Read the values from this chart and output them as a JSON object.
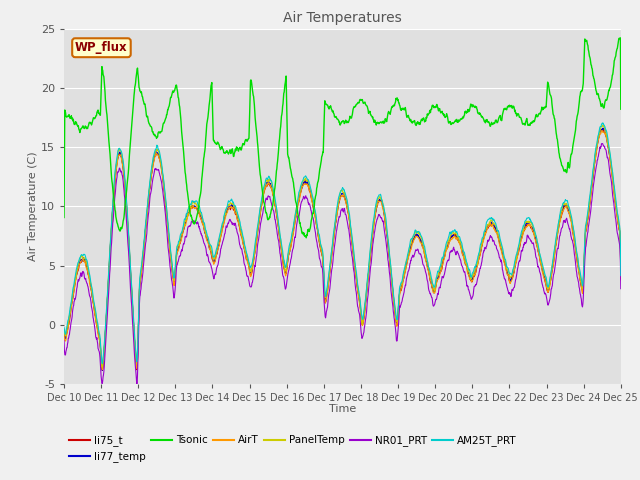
{
  "title": "Air Temperatures",
  "xlabel": "Time",
  "ylabel": "Air Temperature (C)",
  "ylim": [
    -5,
    25
  ],
  "xlim": [
    0,
    15
  ],
  "x_tick_labels": [
    "Dec 10",
    "Dec 11",
    "Dec 12",
    "Dec 13",
    "Dec 14",
    "Dec 15",
    "Dec 16",
    "Dec 17",
    "Dec 18",
    "Dec 19",
    "Dec 20",
    "Dec 21",
    "Dec 22",
    "Dec 23",
    "Dec 24",
    "Dec 25"
  ],
  "series_colors": {
    "li75_t": "#cc0000",
    "li77_temp": "#0000cc",
    "Tsonic": "#00dd00",
    "AirT": "#ff9900",
    "PanelTemp": "#cccc00",
    "NR01_PRT": "#9900cc",
    "AM25T_PRT": "#00cccc"
  },
  "legend_label": "WP_flux",
  "fig_bg_color": "#f0f0f0",
  "plot_bg_color": "#e0e0e0",
  "grid_color": "#ffffff"
}
